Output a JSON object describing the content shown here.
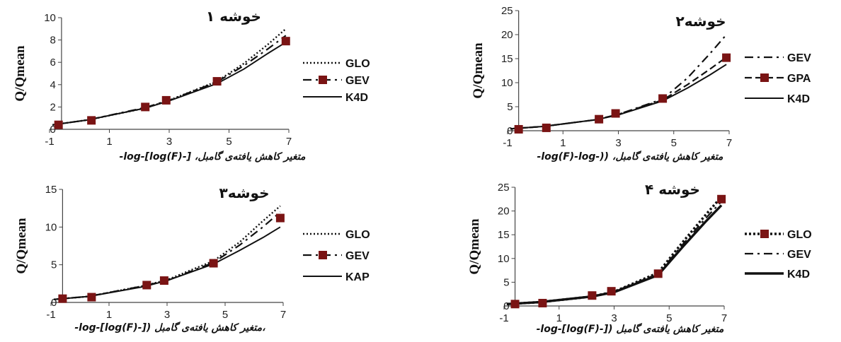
{
  "chart_data": [
    {
      "type": "line",
      "title": "خوشه ۱",
      "ylabel": "Q/Qmean",
      "xlabel": "متغیر کاهش یافته‌ی گامبل، [-log(F)]-log-",
      "xlim": [
        -1,
        7
      ],
      "ylim": [
        0,
        10
      ],
      "xticks": [
        "-1",
        "1",
        "3",
        "5",
        "7"
      ],
      "yticks": [
        "0",
        "2",
        "4",
        "6",
        "8",
        "10"
      ],
      "series": [
        {
          "name": "GLO",
          "style": "dotted",
          "x": [
            -0.9,
            0.3,
            2.2,
            3.0,
            4.6,
            5.5,
            6.3,
            6.9
          ],
          "y": [
            0.4,
            0.85,
            1.9,
            2.6,
            4.3,
            5.9,
            7.6,
            9.0
          ]
        },
        {
          "name": "GEV",
          "style": "dashdot-square",
          "x": [
            -0.9,
            0.3,
            2.2,
            3.0,
            4.6,
            5.5,
            6.3,
            6.9
          ],
          "y": [
            0.4,
            0.85,
            1.95,
            2.6,
            4.25,
            5.7,
            7.2,
            8.4
          ]
        },
        {
          "name": "K4D",
          "style": "solid",
          "x": [
            -0.9,
            0.3,
            2.2,
            3.0,
            4.6,
            5.5,
            6.3,
            6.9
          ],
          "y": [
            0.4,
            0.85,
            1.9,
            2.55,
            4.1,
            5.4,
            6.8,
            7.8
          ]
        }
      ],
      "points": {
        "x": [
          -0.7,
          0.4,
          2.2,
          2.9,
          4.6,
          6.9
        ],
        "y": [
          0.4,
          0.8,
          2.0,
          2.6,
          4.3,
          7.9
        ]
      }
    },
    {
      "type": "line",
      "title": "خوشه۲",
      "ylabel": "Q/Qmean",
      "xlabel": "متغیر کاهش یافته‌ی گامبل، ((-log(F)-log-",
      "xlim": [
        -1,
        7
      ],
      "ylim": [
        0,
        25
      ],
      "xticks": [
        "-1",
        "1",
        "3",
        "5",
        "7"
      ],
      "yticks": [
        "0",
        "5",
        "10",
        "15",
        "20",
        "25"
      ],
      "series": [
        {
          "name": "GEV",
          "style": "dashdot",
          "x": [
            -0.9,
            0.3,
            2.2,
            3.0,
            4.6,
            5.5,
            6.3,
            6.9
          ],
          "y": [
            0.4,
            0.9,
            2.3,
            3.4,
            6.6,
            11.0,
            16.0,
            20.0
          ]
        },
        {
          "name": "GPA",
          "style": "dash-square",
          "x": [
            -0.9,
            0.3,
            2.2,
            3.0,
            4.6,
            5.5,
            6.3,
            6.9
          ],
          "y": [
            0.4,
            0.9,
            2.3,
            3.4,
            6.4,
            9.6,
            12.8,
            15.3
          ]
        },
        {
          "name": "K4D",
          "style": "solid",
          "x": [
            -0.9,
            0.3,
            2.2,
            3.0,
            4.6,
            5.5,
            6.3,
            6.9
          ],
          "y": [
            0.4,
            0.9,
            2.3,
            3.3,
            6.2,
            8.9,
            11.6,
            13.8
          ]
        }
      ],
      "points": {
        "x": [
          -0.6,
          0.4,
          2.3,
          2.9,
          4.6,
          6.9
        ],
        "y": [
          0.3,
          0.6,
          2.4,
          3.6,
          6.7,
          15.2
        ]
      }
    },
    {
      "type": "line",
      "title": "خوشه۳",
      "ylabel": "Q/Qmean",
      "xlabel": "،متغیر کاهش یافته‌ی گامبل ([-log(F)]-log-",
      "xlim": [
        -1,
        7
      ],
      "ylim": [
        0,
        15
      ],
      "xticks": [
        "-1",
        "1",
        "3",
        "5",
        "7"
      ],
      "yticks": [
        "0",
        "5",
        "10",
        "15"
      ],
      "series": [
        {
          "name": "GLO",
          "style": "dotted",
          "x": [
            -0.9,
            0.3,
            2.2,
            3.0,
            4.6,
            5.5,
            6.3,
            6.9
          ],
          "y": [
            0.4,
            0.8,
            2.2,
            3.0,
            5.5,
            8.0,
            10.8,
            12.8
          ]
        },
        {
          "name": "GEV",
          "style": "dashdot-square",
          "x": [
            -0.9,
            0.3,
            2.2,
            3.0,
            4.6,
            5.5,
            6.3,
            6.9
          ],
          "y": [
            0.4,
            0.8,
            2.2,
            2.9,
            5.3,
            7.6,
            10.0,
            12.0
          ]
        },
        {
          "name": "KAP",
          "style": "solid",
          "x": [
            -0.9,
            0.3,
            2.2,
            3.0,
            4.6,
            5.5,
            6.3,
            6.9
          ],
          "y": [
            0.4,
            0.8,
            2.1,
            2.9,
            5.1,
            6.9,
            8.6,
            10.0
          ]
        }
      ],
      "points": {
        "x": [
          -0.6,
          0.4,
          2.3,
          2.9,
          4.6,
          6.9
        ],
        "y": [
          0.5,
          0.7,
          2.3,
          2.9,
          5.2,
          11.2
        ]
      }
    },
    {
      "type": "line",
      "title": "خوشه ۴",
      "ylabel": "Q/Qmean",
      "xlabel": "متغیر کاهش یافته‌ی گامبل ([-log(F)]-log-",
      "xlim": [
        -1,
        7
      ],
      "ylim": [
        0,
        25
      ],
      "xticks": [
        "-1",
        "1",
        "3",
        "5",
        "7"
      ],
      "yticks": [
        "0",
        "5",
        "10",
        "15",
        "20",
        "25"
      ],
      "series": [
        {
          "name": "GLO",
          "style": "dotted-square",
          "x": [
            -0.9,
            0.3,
            2.2,
            3.0,
            4.6,
            5.5,
            6.3,
            6.9
          ],
          "y": [
            0.4,
            0.8,
            2.0,
            3.0,
            7.0,
            13.5,
            19.0,
            23.0
          ]
        },
        {
          "name": "GEV",
          "style": "dashdot",
          "x": [
            -0.9,
            0.3,
            2.2,
            3.0,
            4.6,
            5.5,
            6.3,
            6.9
          ],
          "y": [
            0.4,
            0.8,
            2.0,
            3.0,
            6.8,
            13.0,
            18.3,
            22.0
          ]
        },
        {
          "name": "K4D",
          "style": "solid-thick",
          "x": [
            -0.9,
            0.3,
            2.2,
            3.0,
            4.6,
            5.5,
            6.3,
            6.9
          ],
          "y": [
            0.4,
            0.8,
            2.0,
            2.9,
            6.5,
            12.5,
            17.6,
            21.2
          ]
        }
      ],
      "points": {
        "x": [
          -0.6,
          0.4,
          2.2,
          2.9,
          4.6,
          6.9
        ],
        "y": [
          0.4,
          0.6,
          2.2,
          3.1,
          6.8,
          22.5
        ]
      }
    }
  ]
}
